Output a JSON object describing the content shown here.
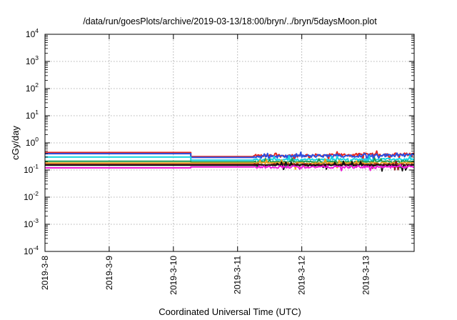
{
  "chart_data": {
    "type": "line",
    "title": "/data/run/goesPlots/archive/2019-03-13/18:00/bryn/../bryn/5daysMoon.plot",
    "xlabel": "Coordinated Universal Time (UTC)",
    "ylabel": "cGy/day",
    "yscale": "log",
    "ylim": [
      0.0001,
      10000
    ],
    "xlim": [
      "2019-03-08 00:00",
      "2019-03-13 18:00"
    ],
    "x_ticks": [
      "2019-3-8",
      "2019-3-9",
      "2019-3-10",
      "2019-3-11",
      "2019-3-12",
      "2019-3-13"
    ],
    "y_ticks": [
      {
        "base": "10",
        "exp": "4"
      },
      {
        "base": "10",
        "exp": "3"
      },
      {
        "base": "10",
        "exp": "2"
      },
      {
        "base": "10",
        "exp": "1"
      },
      {
        "base": "10",
        "exp": "0"
      },
      {
        "base": "10",
        "exp": "-1"
      },
      {
        "base": "10",
        "exp": "-2"
      },
      {
        "base": "10",
        "exp": "-3"
      },
      {
        "base": "10",
        "exp": "-4"
      }
    ],
    "grid": true,
    "series": [
      {
        "color": "#e8261c",
        "x": [
          "2019-03-08 00:00",
          "2019-03-10 06:30",
          "2019-03-10 06:30",
          "2019-03-11 06:00",
          "2019-03-11 06:00",
          "2019-03-13 18:00"
        ],
        "y": [
          0.44,
          0.44,
          0.31,
          0.31,
          0.33,
          0.38
        ],
        "noisy_from": "2019-03-11 06:00",
        "noise": 0.25
      },
      {
        "color": "#2b4fe0",
        "x": [
          "2019-03-08 00:00",
          "2019-03-10 06:30",
          "2019-03-10 06:30",
          "2019-03-11 06:00",
          "2019-03-11 06:00",
          "2019-03-13 18:00"
        ],
        "y": [
          0.4,
          0.4,
          0.29,
          0.29,
          0.31,
          0.36
        ],
        "noisy_from": "2019-03-11 06:00",
        "noise": 0.25
      },
      {
        "color": "#18d5e0",
        "x": [
          "2019-03-08 00:00",
          "2019-03-10 06:30",
          "2019-03-10 06:30",
          "2019-03-11 06:00",
          "2019-03-11 06:00",
          "2019-03-13 18:00"
        ],
        "y": [
          0.3,
          0.3,
          0.23,
          0.23,
          0.24,
          0.25
        ],
        "noisy_from": "2019-03-11 06:00",
        "noise": 0.15
      },
      {
        "color": "#1e9a52",
        "x": [
          "2019-03-08 00:00",
          "2019-03-10 06:30",
          "2019-03-10 06:30",
          "2019-03-11 06:00",
          "2019-03-11 06:00",
          "2019-03-13 18:00"
        ],
        "y": [
          0.21,
          0.21,
          0.2,
          0.2,
          0.2,
          0.21
        ],
        "noisy_from": "2019-03-11 06:00",
        "noise": 0.1
      },
      {
        "color": "#e8a020",
        "x": [
          "2019-03-08 00:00",
          "2019-03-10 06:30",
          "2019-03-10 06:30",
          "2019-03-11 06:00",
          "2019-03-11 06:00",
          "2019-03-13 18:00"
        ],
        "y": [
          0.18,
          0.18,
          0.18,
          0.18,
          0.18,
          0.18
        ],
        "noisy_from": "2019-03-11 06:00",
        "noise": 0.12
      },
      {
        "color": "#8b1a1a",
        "x": [
          "2019-03-08 00:00",
          "2019-03-10 06:30",
          "2019-03-10 06:30",
          "2019-03-11 06:00",
          "2019-03-11 06:00",
          "2019-03-13 18:00"
        ],
        "y": [
          0.16,
          0.16,
          0.16,
          0.16,
          0.16,
          0.16
        ],
        "noisy_from": "2019-03-11 06:00",
        "noise": 0.12
      },
      {
        "color": "#111111",
        "x": [
          "2019-03-08 00:00",
          "2019-03-10 06:30",
          "2019-03-10 06:30",
          "2019-03-11 06:00",
          "2019-03-11 06:00",
          "2019-03-13 18:00"
        ],
        "y": [
          0.15,
          0.15,
          0.15,
          0.15,
          0.15,
          0.15
        ],
        "noisy_from": "2019-03-11 06:00",
        "noise": 0.1
      },
      {
        "color": "#f01ad8",
        "x": [
          "2019-03-08 00:00",
          "2019-03-10 06:30",
          "2019-03-10 06:30",
          "2019-03-11 06:00",
          "2019-03-11 06:00",
          "2019-03-13 18:00"
        ],
        "y": [
          0.12,
          0.12,
          0.13,
          0.13,
          0.13,
          0.13
        ],
        "noisy_from": "2019-03-11 06:00",
        "noise": 0.2
      }
    ]
  }
}
